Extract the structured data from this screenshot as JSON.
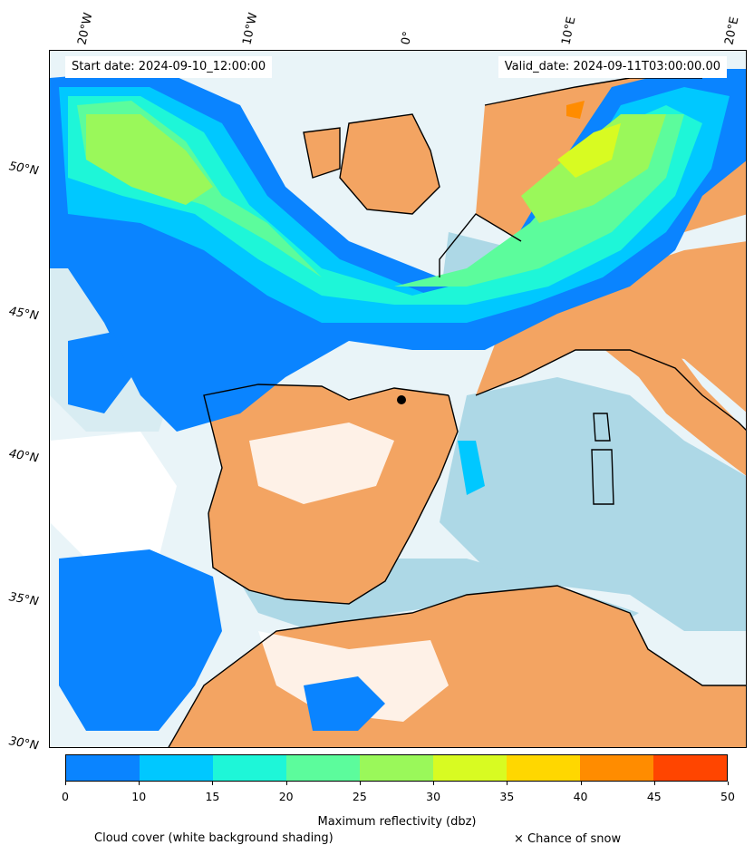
{
  "header": {
    "start_date": "Start date: 2024-09-10_12:00:00",
    "valid_date": "Valid_date: 2024-09-11T03:00:00.00"
  },
  "axes": {
    "lon_labels": [
      "20°W",
      "10°W",
      "0°",
      "10°E",
      "20°E"
    ],
    "lat_labels": [
      "50°N",
      "45°N",
      "40°N",
      "35°N",
      "30°N"
    ]
  },
  "colorbar": {
    "title": "Maximum reflectivity (dbz)",
    "ticks": [
      "0",
      "10",
      "15",
      "20",
      "25",
      "30",
      "35",
      "40",
      "45",
      "50"
    ],
    "colors": [
      "#0a84ff",
      "#00c8ff",
      "#1ef6d8",
      "#5cfc9c",
      "#9af85a",
      "#d8fb22",
      "#ffd700",
      "#ff8c00",
      "#ff4500"
    ]
  },
  "legend": {
    "cloud_cover": "Cloud cover (white background shading)",
    "snow": "× Chance of snow"
  },
  "colors": {
    "land": "#f3a462",
    "sea_cloud": "#add8e6",
    "cloud": "#ffffff",
    "coast": "#000000"
  }
}
